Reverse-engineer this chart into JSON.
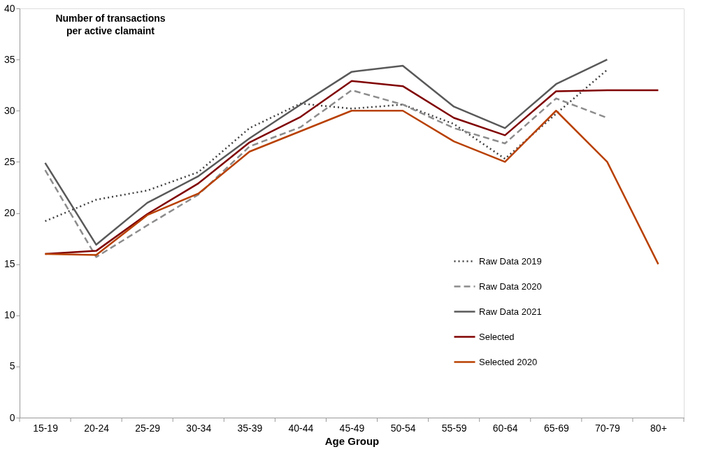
{
  "chart_data": {
    "type": "line",
    "xlabel": "Age Group",
    "ylabel": "Number of transactions\nper active clamaint",
    "categories": [
      "15-19",
      "20-24",
      "25-29",
      "30-34",
      "35-39",
      "40-44",
      "45-49",
      "50-54",
      "55-59",
      "60-64",
      "65-69",
      "70-79",
      "80+"
    ],
    "series": [
      {
        "name": "Raw Data 2019",
        "color": "#404040",
        "line_style": "dotted",
        "values": [
          19.2,
          21.3,
          22.2,
          24.0,
          28.3,
          30.7,
          30.2,
          30.6,
          28.7,
          25.3,
          29.7,
          34.0,
          null
        ]
      },
      {
        "name": "Raw Data 2020",
        "color": "#8c8c8c",
        "line_style": "dashed",
        "values": [
          24.2,
          15.7,
          18.8,
          21.8,
          26.5,
          28.4,
          32.0,
          30.6,
          28.3,
          26.8,
          31.2,
          29.3,
          null
        ]
      },
      {
        "name": "Raw Data 2021",
        "color": "#595959",
        "line_style": "solid",
        "values": [
          24.9,
          16.9,
          21.0,
          23.6,
          27.3,
          30.6,
          33.8,
          34.4,
          30.4,
          28.3,
          32.6,
          35.0,
          null
        ]
      },
      {
        "name": "Selected",
        "color": "#800000",
        "line_style": "solid",
        "values": [
          16.0,
          16.3,
          19.9,
          22.9,
          26.9,
          29.4,
          32.9,
          32.4,
          29.3,
          27.6,
          31.9,
          32.0,
          32.0
        ]
      },
      {
        "name": "Selected 2020",
        "color": "#b84000",
        "line_style": "solid",
        "values": [
          16.0,
          15.9,
          19.8,
          21.9,
          26.0,
          28.0,
          30.0,
          30.0,
          27.0,
          25.0,
          30.0,
          25.0,
          15.0
        ]
      }
    ],
    "ylim": [
      0,
      40
    ],
    "yticks": [
      0,
      5,
      10,
      15,
      20,
      25,
      30,
      35,
      40
    ],
    "grid": false,
    "legend": "right",
    "marker": "none"
  }
}
